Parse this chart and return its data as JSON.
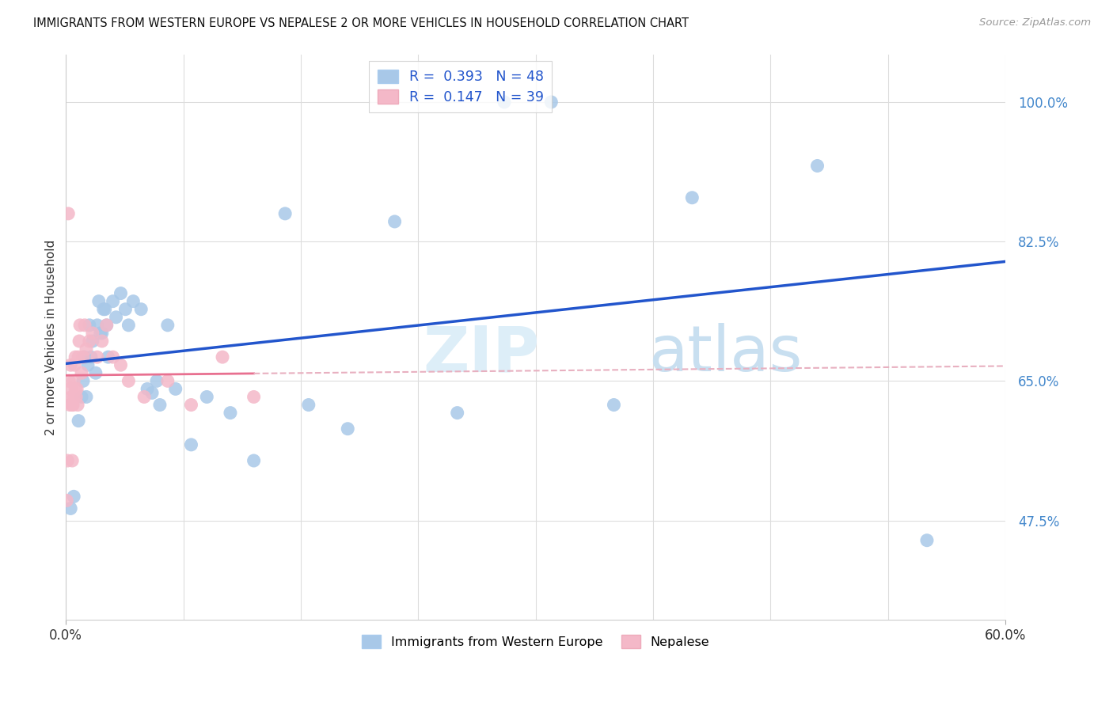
{
  "title": "IMMIGRANTS FROM WESTERN EUROPE VS NEPALESE 2 OR MORE VEHICLES IN HOUSEHOLD CORRELATION CHART",
  "source": "Source: ZipAtlas.com",
  "ylabel": "2 or more Vehicles in Household",
  "y_ticks": [
    47.5,
    65.0,
    82.5,
    100.0
  ],
  "x_min": 0.0,
  "x_max": 60.0,
  "y_min": 35.0,
  "y_max": 106.0,
  "blue_R": 0.393,
  "blue_N": 48,
  "pink_R": 0.147,
  "pink_N": 39,
  "blue_color": "#a8c8e8",
  "pink_color": "#f4b8c8",
  "blue_line_color": "#2255cc",
  "pink_line_color": "#e87090",
  "pink_dash_color": "#e8b0c0",
  "legend_label_blue": "Immigrants from Western Europe",
  "legend_label_pink": "Nepalese",
  "watermark": "ZIPatlas",
  "blue_x": [
    0.3,
    0.5,
    0.8,
    1.0,
    1.2,
    1.4,
    1.5,
    1.6,
    1.7,
    1.9,
    2.0,
    2.1,
    2.3,
    2.5,
    2.7,
    3.0,
    3.2,
    3.5,
    3.8,
    4.0,
    4.3,
    4.8,
    5.2,
    5.5,
    5.8,
    6.0,
    6.5,
    7.0,
    8.0,
    9.0,
    10.5,
    12.0,
    14.0,
    15.5,
    18.0,
    21.0,
    25.0,
    28.0,
    31.0,
    35.0,
    40.0,
    48.0,
    55.0,
    1.1,
    1.3,
    2.2,
    2.4,
    2.6
  ],
  "blue_y": [
    49.0,
    50.5,
    60.0,
    63.0,
    68.0,
    67.0,
    72.0,
    68.0,
    70.0,
    66.0,
    72.0,
    75.0,
    71.0,
    74.0,
    68.0,
    75.0,
    73.0,
    76.0,
    74.0,
    72.0,
    75.0,
    74.0,
    64.0,
    63.5,
    65.0,
    62.0,
    72.0,
    64.0,
    57.0,
    63.0,
    61.0,
    55.0,
    86.0,
    62.0,
    59.0,
    85.0,
    61.0,
    100.0,
    100.0,
    62.0,
    88.0,
    92.0,
    45.0,
    65.0,
    63.0,
    71.0,
    74.0,
    72.0
  ],
  "pink_x": [
    0.05,
    0.1,
    0.15,
    0.2,
    0.25,
    0.3,
    0.35,
    0.4,
    0.45,
    0.5,
    0.55,
    0.6,
    0.65,
    0.7,
    0.75,
    0.8,
    0.85,
    0.9,
    1.0,
    1.1,
    1.2,
    1.3,
    1.5,
    1.7,
    2.0,
    2.3,
    2.6,
    3.0,
    3.5,
    4.0,
    5.0,
    6.5,
    8.0,
    10.0,
    12.0,
    0.3,
    0.4,
    0.5,
    0.6
  ],
  "pink_y": [
    50.0,
    55.0,
    86.0,
    65.0,
    62.0,
    67.0,
    63.0,
    55.0,
    62.0,
    65.0,
    67.0,
    68.0,
    63.0,
    64.0,
    62.0,
    68.0,
    70.0,
    72.0,
    66.0,
    68.0,
    72.0,
    69.0,
    70.0,
    71.0,
    68.0,
    70.0,
    72.0,
    68.0,
    67.0,
    65.0,
    63.0,
    65.0,
    62.0,
    68.0,
    63.0,
    64.0,
    62.0,
    63.0,
    64.0
  ],
  "x_grid_count": 9
}
